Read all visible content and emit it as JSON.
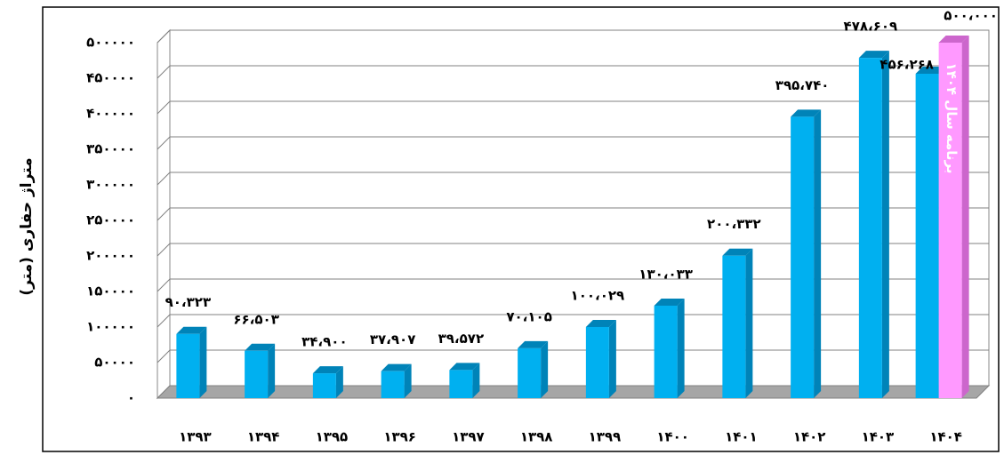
{
  "chart_data": {
    "type": "bar3d",
    "y_axis_label": "متراژ حفاری (متر)",
    "annotation": "برنامه سال ۱۴۰۴",
    "categories": [
      "۱۳۹۳",
      "۱۳۹۴",
      "۱۳۹۵",
      "۱۳۹۶",
      "۱۳۹۷",
      "۱۳۹۸",
      "۱۳۹۹",
      "۱۴۰۰",
      "۱۴۰۱",
      "۱۴۰۲",
      "۱۴۰۳",
      "۱۴۰۴"
    ],
    "series": [
      {
        "color": "#00b0f0",
        "side": "#0083b8",
        "values": [
          90323,
          66503,
          34900,
          37907,
          39572,
          70105,
          100029,
          130033,
          200332,
          395740,
          478609,
          456268
        ],
        "value_labels": [
          "۹۰،۳۲۳",
          "۶۶،۵۰۳",
          "۳۴،۹۰۰",
          "۳۷،۹۰۷",
          "۳۹،۵۷۲",
          "۷۰،۱۰۵",
          "۱۰۰،۰۲۹",
          "۱۳۰،۰۳۳",
          "۲۰۰،۳۳۲",
          "۳۹۵،۷۴۰",
          "۴۷۸،۶۰۹",
          "۴۵۶،۲۶۸"
        ]
      },
      {
        "color": "#ff99ff",
        "side": "#cc66cc",
        "values": [
          null,
          null,
          null,
          null,
          null,
          null,
          null,
          null,
          null,
          null,
          null,
          500000
        ],
        "value_labels": [
          null,
          null,
          null,
          null,
          null,
          null,
          null,
          null,
          null,
          null,
          null,
          "۵۰۰،۰۰۰"
        ]
      }
    ],
    "ylim": [
      0,
      500000
    ],
    "yticks": [
      {
        "value": 0,
        "label": "۰"
      },
      {
        "value": 50000,
        "label": "۵۰۰۰۰"
      },
      {
        "value": 100000,
        "label": "۱۰۰۰۰۰"
      },
      {
        "value": 150000,
        "label": "۱۵۰۰۰۰"
      },
      {
        "value": 200000,
        "label": "۲۰۰۰۰۰"
      },
      {
        "value": 250000,
        "label": "۲۵۰۰۰۰"
      },
      {
        "value": 300000,
        "label": "۳۰۰۰۰۰"
      },
      {
        "value": 350000,
        "label": "۳۵۰۰۰۰"
      },
      {
        "value": 400000,
        "label": "۴۰۰۰۰۰"
      },
      {
        "value": 450000,
        "label": "۴۵۰۰۰۰"
      },
      {
        "value": 500000,
        "label": "۵۰۰۰۰۰"
      }
    ],
    "grid": true
  }
}
